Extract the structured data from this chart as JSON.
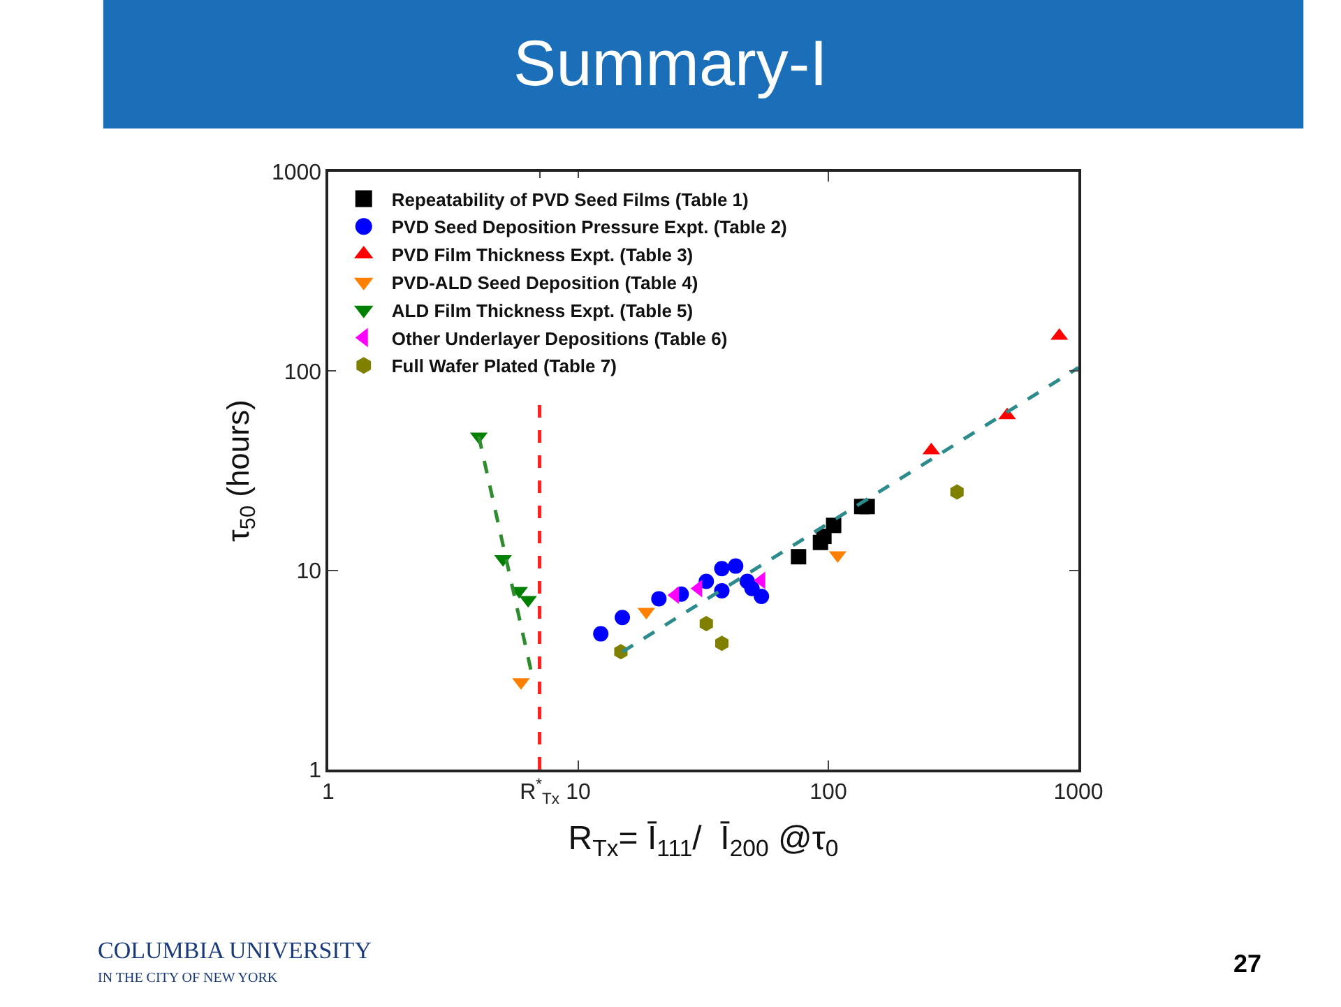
{
  "chart_data": {
    "type": "scatter",
    "title": "Summary-I",
    "xlabel": "R$_{Tx}$= Ī$_{111}$/  Ī$_{200}$ @τ$_{0}$",
    "ylabel": "τ$_{50}$ (hours)",
    "log": "xy",
    "legend": "top left",
    "xlim": [
      1,
      1000
    ],
    "ylim": [
      1,
      1000
    ],
    "xticks": [
      1,
      {
        "value": 7,
        "label": "R$^{*}$$_{Tx}$"
      },
      10,
      100,
      1000
    ],
    "yticks": [
      1,
      10,
      100,
      1000
    ],
    "series": [
      {
        "name": "Repeatability of PVD Seed Films (Table 1)",
        "color": "#000000",
        "marker": "square",
        "x": [
          76,
          93,
          96,
          105,
          136,
          143
        ],
        "values": [
          11.7,
          13.8,
          14.8,
          16.8,
          20.9,
          20.9
        ]
      },
      {
        "name": "PVD Seed Deposition Pressure Expt. (Table 2)",
        "color": "#0000ff",
        "marker": "circle",
        "x": [
          12.3,
          15,
          21,
          25.8,
          32.5,
          37.5,
          42.6,
          37.5,
          47.4,
          49.5,
          54
        ],
        "values": [
          4.8,
          5.8,
          7.2,
          7.6,
          8.8,
          10.2,
          10.5,
          7.9,
          8.8,
          8.1,
          7.4
        ]
      },
      {
        "name": "PVD Film Thickness Expt. (Table 3)",
        "color": "#ff0000",
        "marker": "triangle-up",
        "x": [
          258,
          519,
          839
        ],
        "values": [
          40,
          60,
          150
        ]
      },
      {
        "name": "PVD-ALD Seed Deposition (Table 4)",
        "color": "#ff8000",
        "marker": "triangle-down",
        "x": [
          5.9,
          18.7,
          109
        ],
        "values": [
          2.75,
          6.2,
          11.9
        ]
      },
      {
        "name": "ALD Film Thickness Expt. (Table 5)",
        "color": "#008000",
        "marker": "triangle-down",
        "x": [
          4.0,
          5.0,
          5.8,
          6.3
        ],
        "values": [
          47,
          11.4,
          7.9,
          7.1
        ]
      },
      {
        "name": "Other Underlayer Depositions (Table 6)",
        "color": "#ff00ff",
        "marker": "triangle-left",
        "x": [
          24.4,
          30.2,
          54
        ],
        "values": [
          7.5,
          8.1,
          8.9
        ]
      },
      {
        "name": "Full Wafer Plated (Table 7)",
        "color": "#808000",
        "x": [
          14.8,
          32.5,
          37.5,
          327
        ],
        "values": [
          3.9,
          5.4,
          4.3,
          24.7
        ]
      },
      {
        "type": "line",
        "color": "#2e8b2e",
        "line_style": "dashed",
        "x": [
          4.0,
          6.5
        ],
        "values": [
          47,
          3.06
        ]
      },
      {
        "type": "line",
        "color": "#2e8b8b",
        "line_style": "dashed",
        "x": [
          15,
          1000
        ],
        "values": [
          3.9,
          104
        ]
      }
    ],
    "ref_lines": [
      {
        "axis": "x",
        "value": 7,
        "color": "#ff2020",
        "line_style": "dashed"
      }
    ],
    "annotations": [
      "COLUMBIA UNIVERSITY",
      "IN THE CITY OF NEW YORK",
      "27"
    ]
  }
}
